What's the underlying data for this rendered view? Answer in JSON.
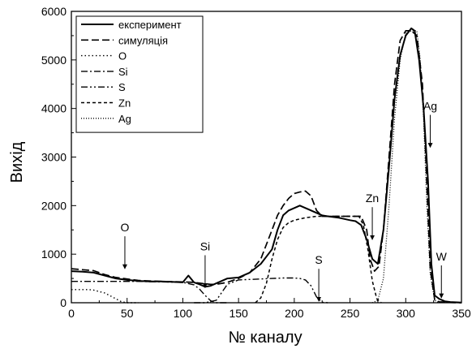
{
  "chart_data": {
    "type": "line",
    "xlabel": "№ каналу",
    "ylabel": "Вихід",
    "xlim": [
      0,
      350
    ],
    "ylim": [
      0,
      6000
    ],
    "x_ticks": [
      0,
      50,
      100,
      150,
      200,
      250,
      300,
      350
    ],
    "y_ticks": [
      0,
      1000,
      2000,
      3000,
      4000,
      5000,
      6000
    ],
    "grid": false,
    "legend_position": "top-left",
    "legend": [
      {
        "label": "експеримент",
        "style": "solid"
      },
      {
        "label": "симуляція",
        "style": "dash"
      },
      {
        "label": "O",
        "style": "dot"
      },
      {
        "label": "Si",
        "style": "dashdot"
      },
      {
        "label": "S",
        "style": "dashdotdot"
      },
      {
        "label": "Zn",
        "style": "shortdash"
      },
      {
        "label": "Ag",
        "style": "shortdot"
      }
    ],
    "series": [
      {
        "name": "експеримент",
        "style": "solid",
        "x": [
          0,
          10,
          20,
          30,
          40,
          50,
          60,
          70,
          80,
          90,
          100,
          105,
          110,
          115,
          120,
          125,
          130,
          140,
          150,
          160,
          170,
          180,
          185,
          190,
          195,
          200,
          205,
          210,
          215,
          220,
          225,
          230,
          240,
          250,
          255,
          260,
          265,
          270,
          275,
          280,
          285,
          290,
          295,
          300,
          305,
          308,
          312,
          316,
          320,
          323,
          326,
          330,
          335,
          340,
          350
        ],
        "y": [
          650,
          640,
          620,
          560,
          500,
          470,
          450,
          440,
          440,
          430,
          420,
          560,
          420,
          380,
          330,
          350,
          400,
          500,
          520,
          620,
          800,
          1100,
          1500,
          1800,
          1900,
          1950,
          2000,
          1950,
          1900,
          1850,
          1800,
          1780,
          1750,
          1700,
          1680,
          1600,
          1300,
          900,
          800,
          1500,
          2800,
          4200,
          5100,
          5500,
          5650,
          5600,
          5000,
          4000,
          2500,
          800,
          150,
          80,
          30,
          15,
          5
        ]
      },
      {
        "name": "симуляція",
        "style": "dash",
        "x": [
          0,
          10,
          20,
          30,
          40,
          50,
          60,
          80,
          100,
          110,
          120,
          125,
          130,
          140,
          150,
          160,
          170,
          180,
          185,
          190,
          195,
          200,
          205,
          210,
          215,
          220,
          225,
          230,
          250,
          260,
          265,
          268,
          272,
          276,
          280,
          285,
          290,
          295,
          300,
          305,
          310,
          315,
          318,
          322,
          326,
          330,
          340,
          350
        ],
        "y": [
          700,
          680,
          660,
          580,
          520,
          490,
          460,
          440,
          430,
          420,
          390,
          380,
          380,
          420,
          500,
          620,
          900,
          1500,
          1800,
          2000,
          2150,
          2250,
          2280,
          2300,
          2200,
          1900,
          1780,
          1780,
          1780,
          1780,
          1500,
          900,
          650,
          750,
          1500,
          3000,
          4500,
          5400,
          5600,
          5600,
          5500,
          4500,
          3000,
          700,
          60,
          20,
          5,
          0
        ]
      },
      {
        "name": "O",
        "style": "dot",
        "x": [
          0,
          10,
          15,
          20,
          30,
          40,
          45,
          50,
          60
        ],
        "y": [
          270,
          270,
          270,
          260,
          200,
          80,
          20,
          0,
          0
        ]
      },
      {
        "name": "Si",
        "style": "dashdot",
        "x": [
          0,
          20,
          40,
          60,
          80,
          100,
          110,
          115,
          120,
          125,
          130,
          140
        ],
        "y": [
          440,
          440,
          440,
          440,
          430,
          420,
          370,
          280,
          150,
          40,
          0,
          0
        ]
      },
      {
        "name": "S",
        "style": "dashdotdot",
        "x": [
          110,
          120,
          130,
          140,
          150,
          160,
          170,
          180,
          190,
          200,
          205,
          210,
          215,
          220,
          225,
          230
        ],
        "y": [
          0,
          0,
          50,
          380,
          470,
          480,
          490,
          500,
          510,
          510,
          500,
          470,
          350,
          120,
          10,
          0
        ]
      },
      {
        "name": "Zn",
        "style": "shortdash",
        "x": [
          165,
          170,
          175,
          180,
          185,
          190,
          195,
          200,
          210,
          220,
          230,
          240,
          250,
          258,
          262,
          266,
          270,
          274,
          278
        ],
        "y": [
          0,
          100,
          400,
          900,
          1300,
          1550,
          1650,
          1700,
          1750,
          1780,
          1780,
          1780,
          1780,
          1780,
          1600,
          1100,
          450,
          80,
          0
        ]
      },
      {
        "name": "Ag",
        "style": "shortdot",
        "x": [
          270,
          275,
          280,
          285,
          290,
          295,
          300,
          305,
          310,
          313,
          316,
          319,
          322,
          326,
          330
        ],
        "y": [
          0,
          50,
          500,
          2000,
          3800,
          5000,
          5550,
          5600,
          5600,
          5000,
          3800,
          2000,
          600,
          50,
          0
        ]
      }
    ],
    "annotations": [
      {
        "text": "O",
        "x": 48,
        "y": 700
      },
      {
        "text": "Si",
        "x": 120,
        "y": 310
      },
      {
        "text": "S",
        "x": 222,
        "y": 30
      },
      {
        "text": "Zn",
        "x": 270,
        "y": 1300
      },
      {
        "text": "Ag",
        "x": 322,
        "y": 3200
      },
      {
        "text": "W",
        "x": 332,
        "y": 100
      }
    ]
  }
}
